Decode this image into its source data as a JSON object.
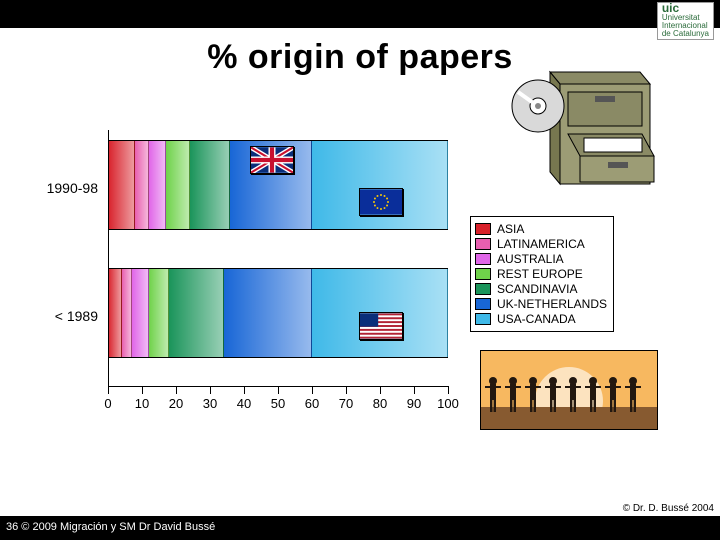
{
  "topbar": {
    "logo_line1": "uic",
    "logo_line2": "Universitat",
    "logo_line3": "Internacional",
    "logo_line4": "de Catalunya"
  },
  "title": "% origin of papers",
  "chart": {
    "type": "stacked-bar-horizontal",
    "categories": [
      "1990-98",
      "< 1989"
    ],
    "series": [
      "ASIA",
      "LATINAMERICA",
      "AUSTRALIA",
      "REST EUROPE",
      "SCANDINAVIA",
      "UK-NETHERLANDS",
      "USA-CANADA"
    ],
    "colors": [
      "#d8202a",
      "#e85fb0",
      "#e066e8",
      "#6fd24a",
      "#1a945a",
      "#1866d6",
      "#3fb9e8"
    ],
    "values": [
      [
        8,
        4,
        5,
        7,
        12,
        24,
        40
      ],
      [
        4,
        3,
        5,
        6,
        16,
        26,
        40
      ]
    ],
    "xlim": [
      0,
      100
    ],
    "xtick_step": 10,
    "xlabels": [
      "0",
      "10",
      "20",
      "30",
      "40",
      "50",
      "60",
      "70",
      "80",
      "90",
      "100"
    ],
    "gradient": true,
    "flags": [
      {
        "row": 0,
        "segment": 5,
        "id": "uk-flag"
      },
      {
        "row": 0,
        "segment": 6,
        "id": "eu-flag"
      },
      {
        "row": 1,
        "segment": 6,
        "id": "usa-flag"
      }
    ]
  },
  "legend": {
    "items": [
      "ASIA",
      "LATINAMERICA",
      "AUSTRALIA",
      "REST EUROPE",
      "SCANDINAVIA",
      "UK-NETHERLANDS",
      "USA-CANADA"
    ]
  },
  "cabinet": {
    "body_color": "#8a8a65",
    "front_color": "#9c9c75",
    "paper_color": "#ffffff",
    "disc_color": "#d9d9d9"
  },
  "people": {
    "sky_color": "#f7b860",
    "ground_color": "#875a30",
    "silhouette_color": "#221810",
    "count": 8
  },
  "copyrights": {
    "inline": "© Dr. D. Bussé 2004",
    "footer": "36 © 2009 Migración y SM Dr David Bussé"
  }
}
